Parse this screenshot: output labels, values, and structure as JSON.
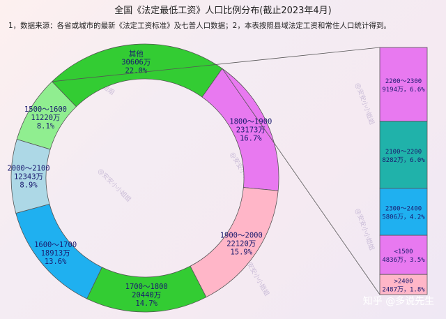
{
  "chart_data": {
    "type": "pie",
    "title": "全国《法定最低工资》人口比例分布(截止2023年4月)",
    "subtitle": "1，数据来源：各省或城市的最新《法定工资标准》及七普人口数据；2，本表按照县域法定工资和常住人口统计得到。",
    "donut": {
      "segments": [
        {
          "label": "其他",
          "population": "30606万",
          "percent": "22.0%",
          "value": 22.0,
          "color": "#33cc33"
        },
        {
          "label": "1800～1900",
          "population": "23173万",
          "percent": "16.7%",
          "value": 16.7,
          "color": "#e879f0"
        },
        {
          "label": "1900～2000",
          "population": "22120万",
          "percent": "15.9%",
          "value": 15.9,
          "color": "#ffb6c8"
        },
        {
          "label": "1700～1800",
          "population": "20440万",
          "percent": "14.7%",
          "value": 14.7,
          "color": "#33cc33"
        },
        {
          "label": "1600～1700",
          "population": "18913万",
          "percent": "13.6%",
          "value": 13.6,
          "color": "#1fb0f0"
        },
        {
          "label": "2000～2100",
          "population": "12343万",
          "percent": "8.9%",
          "value": 8.9,
          "color": "#add8e6"
        },
        {
          "label": "1500～1600",
          "population": "11220万",
          "percent": "8.1%",
          "value": 8.1,
          "color": "#90ee90"
        }
      ]
    },
    "breakdown_bar": {
      "segments": [
        {
          "label": "2200～2300",
          "value_text": "9194万，6.6%",
          "value": 6.6,
          "color": "#e879f0"
        },
        {
          "label": "2100～2200",
          "value_text": "8282万，6.0%",
          "value": 6.0,
          "color": "#20b2aa"
        },
        {
          "label": "2300～2400",
          "value_text": "5806万，4.2%",
          "value": 4.2,
          "color": "#1fb0f0"
        },
        {
          "label": "<1500",
          "value_text": "4836万，3.5%",
          "value": 3.5,
          "color": "#e879f0"
        },
        {
          "label": ">2400",
          "value_text": "2487万，1.8%",
          "value": 1.8,
          "color": "#ffb6c8"
        }
      ]
    }
  },
  "watermark": "@安安小小姐姐",
  "brand": "知乎 @多说先生"
}
